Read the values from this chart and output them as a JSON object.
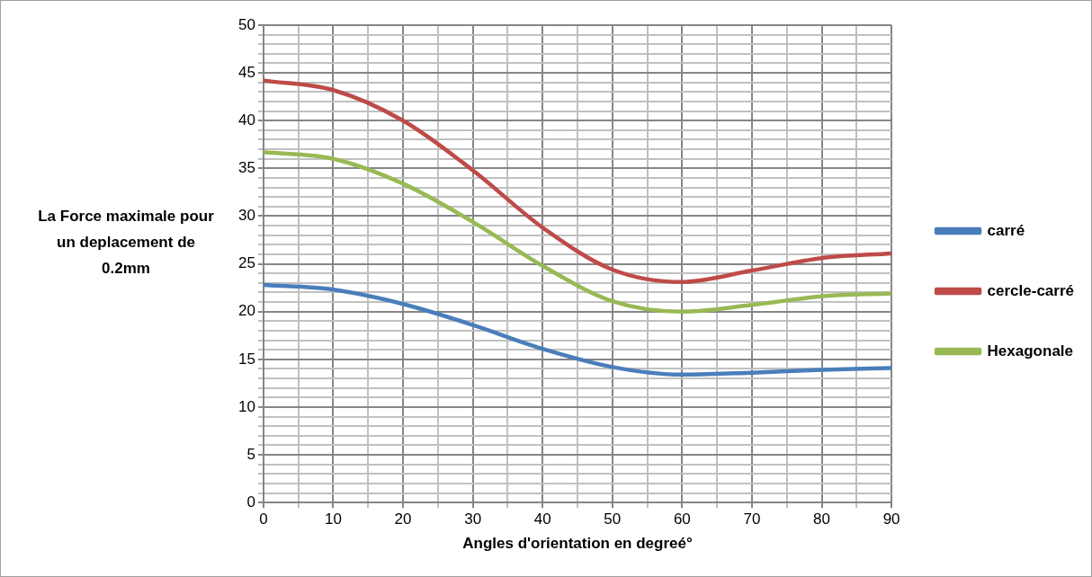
{
  "chart_data": {
    "type": "line",
    "xlabel": "Angles d'orientation en degreé°",
    "ylabel": "La Force maximale pour un deplacement de 0.2mm",
    "x": [
      0,
      10,
      20,
      30,
      40,
      50,
      60,
      70,
      80,
      90
    ],
    "series": [
      {
        "name": "carré",
        "color": "#4a7ebb",
        "values": [
          22.8,
          22.3,
          20.8,
          18.6,
          16.1,
          14.2,
          13.4,
          13.6,
          13.9,
          14.1
        ]
      },
      {
        "name": "cercle-carré",
        "color": "#be4b48",
        "values": [
          44.2,
          43.2,
          40.0,
          34.8,
          28.8,
          24.4,
          23.1,
          24.3,
          25.6,
          26.1
        ]
      },
      {
        "name": "Hexagonale",
        "color": "#98b954",
        "values": [
          36.7,
          36.0,
          33.4,
          29.4,
          24.8,
          21.1,
          20.0,
          20.7,
          21.6,
          21.9
        ]
      }
    ],
    "xlim": [
      0,
      90
    ],
    "xticks": [
      0,
      {
        "value": 5,
        "label": null
      },
      10,
      {
        "value": 15,
        "label": null
      },
      20,
      {
        "value": 25,
        "label": null
      },
      30,
      {
        "value": 35,
        "label": null
      },
      40,
      {
        "value": 45,
        "label": null
      },
      50,
      {
        "value": 55,
        "label": null
      },
      60,
      {
        "value": 65,
        "label": null
      },
      70,
      {
        "value": 75,
        "label": null
      },
      80,
      {
        "value": 85,
        "label": null
      },
      90
    ],
    "ylim": [
      0,
      50
    ],
    "yticks": [
      0,
      {
        "value": 1,
        "label": null
      },
      {
        "value": 2,
        "label": null
      },
      {
        "value": 3,
        "label": null
      },
      {
        "value": 4,
        "label": null
      },
      5,
      {
        "value": 6,
        "label": null
      },
      {
        "value": 7,
        "label": null
      },
      {
        "value": 8,
        "label": null
      },
      {
        "value": 9,
        "label": null
      },
      10,
      {
        "value": 11,
        "label": null
      },
      {
        "value": 12,
        "label": null
      },
      {
        "value": 13,
        "label": null
      },
      {
        "value": 14,
        "label": null
      },
      15,
      {
        "value": 16,
        "label": null
      },
      {
        "value": 17,
        "label": null
      },
      {
        "value": 18,
        "label": null
      },
      {
        "value": 19,
        "label": null
      },
      20,
      {
        "value": 21,
        "label": null
      },
      {
        "value": 22,
        "label": null
      },
      {
        "value": 23,
        "label": null
      },
      {
        "value": 24,
        "label": null
      },
      25,
      {
        "value": 26,
        "label": null
      },
      {
        "value": 27,
        "label": null
      },
      {
        "value": 28,
        "label": null
      },
      {
        "value": 29,
        "label": null
      },
      30,
      {
        "value": 31,
        "label": null
      },
      {
        "value": 32,
        "label": null
      },
      {
        "value": 33,
        "label": null
      },
      {
        "value": 34,
        "label": null
      },
      35,
      {
        "value": 36,
        "label": null
      },
      {
        "value": 37,
        "label": null
      },
      {
        "value": 38,
        "label": null
      },
      {
        "value": 39,
        "label": null
      },
      40,
      {
        "value": 41,
        "label": null
      },
      {
        "value": 42,
        "label": null
      },
      {
        "value": 43,
        "label": null
      },
      {
        "value": 44,
        "label": null
      },
      45,
      {
        "value": 46,
        "label": null
      },
      {
        "value": 47,
        "label": null
      },
      {
        "value": 48,
        "label": null
      },
      {
        "value": 49,
        "label": null
      },
      50
    ],
    "grid": true,
    "legend": "right",
    "marker": "none",
    "line_style": "solid"
  }
}
